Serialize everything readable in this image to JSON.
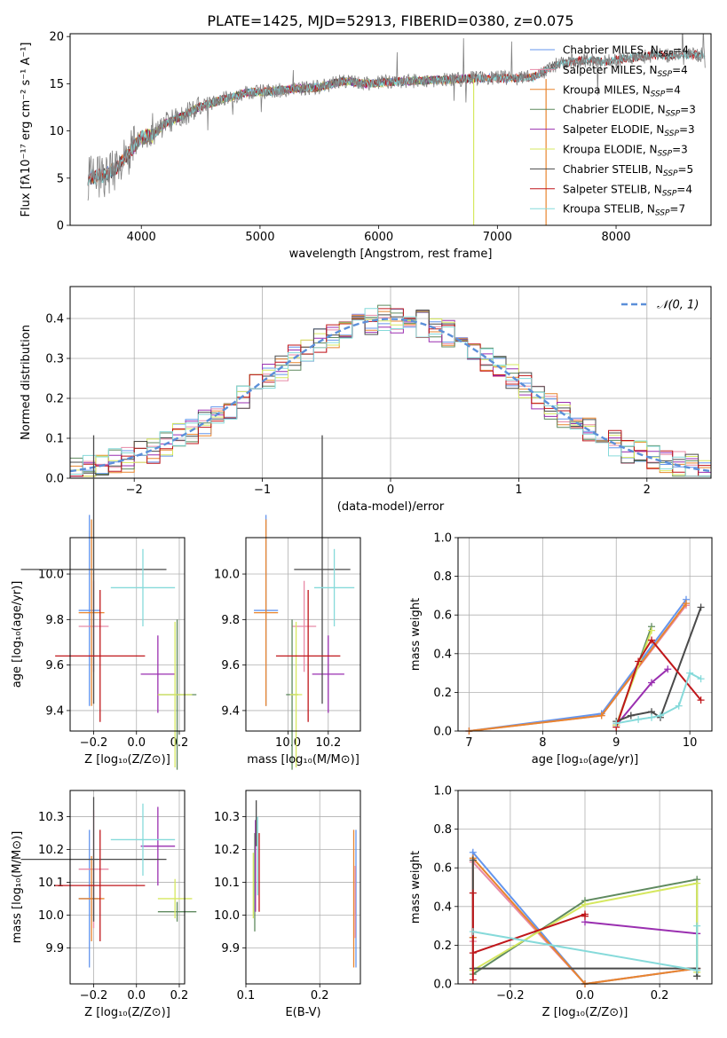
{
  "figure_title": "PLATE=1425, MJD=52913, FIBERID=0380, z=0.075",
  "colors": {
    "Chabrier MILES": "#6495ed",
    "Salpeter MILES": "#e88aa6",
    "Kroupa MILES": "#e8852f",
    "Chabrier ELODIE": "#5f8a5f",
    "Salpeter ELODIE": "#9a2fb0",
    "Kroupa ELODIE": "#d6e860",
    "Chabrier STELIB": "#4a4a4a",
    "Salpeter STELIB": "#c0171b",
    "Kroupa STELIB": "#86dada"
  },
  "chart_data": [
    {
      "id": "spectrum",
      "type": "line",
      "xlabel": "wavelength [Angstrom, rest frame]",
      "ylabel": "Flux [fλ10⁻¹⁷ erg cm⁻² s⁻¹ A⁻¹]",
      "xlim": [
        3400,
        8800
      ],
      "ylim": [
        0,
        20.3
      ],
      "xticks": [
        "4000",
        "5000",
        "6000",
        "7000",
        "8000"
      ],
      "yticks": [
        "0",
        "5",
        "10",
        "15",
        "20"
      ],
      "grid": false,
      "legend_position": "right",
      "legend": [
        {
          "name": "Chabrier MILES",
          "n": "4"
        },
        {
          "name": "Salpeter MILES",
          "n": "4"
        },
        {
          "name": "Kroupa MILES",
          "n": "4"
        },
        {
          "name": "Chabrier ELODIE",
          "n": "3"
        },
        {
          "name": "Salpeter ELODIE",
          "n": "3"
        },
        {
          "name": "Kroupa ELODIE",
          "n": "3"
        },
        {
          "name": "Chabrier STELIB",
          "n": "5"
        },
        {
          "name": "Salpeter STELIB",
          "n": "4"
        },
        {
          "name": "Kroupa STELIB",
          "n": "7"
        }
      ],
      "continuum": {
        "x": [
          3550,
          3700,
          3800,
          3900,
          4000,
          4100,
          4200,
          4300,
          4500,
          4700,
          4900,
          5100,
          5300,
          5500,
          5700,
          5900,
          6100,
          6300,
          6500,
          6700,
          6900,
          7100,
          7300,
          7500,
          7700,
          7900,
          8100,
          8300,
          8500,
          8750
        ],
        "y": [
          5.0,
          5.3,
          6.3,
          7.8,
          9.3,
          9.5,
          10.8,
          11.3,
          12.6,
          13.4,
          14.1,
          14.2,
          14.5,
          14.6,
          15.3,
          15.0,
          15.2,
          15.3,
          15.4,
          15.5,
          15.6,
          15.6,
          15.7,
          17.0,
          17.5,
          17.3,
          17.7,
          18.0,
          18.0,
          18.1
        ]
      },
      "model_ranges": {
        "Chabrier MILES": [
          3550,
          7410
        ],
        "Salpeter MILES": [
          3550,
          7410
        ],
        "Kroupa MILES": [
          3550,
          7410
        ],
        "Chabrier ELODIE": [
          3900,
          6800
        ],
        "Salpeter ELODIE": [
          3900,
          6800
        ],
        "Kroupa ELODIE": [
          3900,
          6800
        ],
        "Chabrier STELIB": [
          3550,
          8750
        ],
        "Salpeter STELIB": [
          3550,
          8750
        ],
        "Kroupa STELIB": [
          3550,
          8750
        ]
      }
    },
    {
      "id": "residuals",
      "type": "bar",
      "xlabel": "(data-model)/error",
      "ylabel": "Normed distribution",
      "xlim": [
        -2.5,
        2.5
      ],
      "ylim": [
        0,
        0.48
      ],
      "xticks": [
        "−2",
        "−1",
        "0",
        "1",
        "2"
      ],
      "yticks": [
        "0.0",
        "0.1",
        "0.2",
        "0.3",
        "0.4"
      ],
      "grid": true,
      "legend_position": "top-right",
      "bin_width": 0.1,
      "reference": {
        "label": "𝒩(0, 1)",
        "mean": 0,
        "sigma": 1,
        "style": "dashed"
      }
    },
    {
      "id": "age_vs_Z",
      "type": "scatter",
      "xlabel": "Z [log₁₀(Z/Z⊙)]",
      "ylabel": "age  [log₁₀(age/yr)]",
      "xlim": [
        -0.31,
        0.225
      ],
      "ylim": [
        9.31,
        10.16
      ],
      "xticks": [
        "−0.2",
        "0.0",
        "0.2"
      ],
      "yticks": [
        "9.4",
        "9.6",
        "9.8",
        "10.0"
      ],
      "grid": true,
      "points": [
        {
          "model": "Chabrier MILES",
          "x": -0.22,
          "xerr": 0.05,
          "y": 9.84,
          "yerr": 0.42
        },
        {
          "model": "Salpeter MILES",
          "x": -0.2,
          "xerr": 0.07,
          "y": 9.77,
          "yerr": 0.2
        },
        {
          "model": "Kroupa MILES",
          "x": -0.21,
          "xerr": 0.06,
          "y": 9.83,
          "yerr": 0.41
        },
        {
          "model": "Chabrier ELODIE",
          "x": 0.19,
          "xerr": 0.09,
          "y": 9.47,
          "yerr": 0.33
        },
        {
          "model": "Salpeter ELODIE",
          "x": 0.1,
          "xerr": 0.08,
          "y": 9.56,
          "yerr": 0.17
        },
        {
          "model": "Kroupa ELODIE",
          "x": 0.18,
          "xerr": 0.08,
          "y": 9.47,
          "yerr": 0.32
        },
        {
          "model": "Chabrier STELIB",
          "x": -0.2,
          "xerr": 0.34,
          "y": 10.02,
          "yerr": 0.59
        },
        {
          "model": "Salpeter STELIB",
          "x": -0.17,
          "xerr": 0.21,
          "y": 9.64,
          "yerr": 0.29
        },
        {
          "model": "Kroupa STELIB",
          "x": 0.03,
          "xerr": 0.15,
          "y": 9.94,
          "yerr": 0.17
        }
      ]
    },
    {
      "id": "age_vs_mass",
      "type": "scatter",
      "xlabel": "mass [log₁₀(M/M⊙)]",
      "ylabel": "",
      "xlim": [
        9.79,
        10.36
      ],
      "ylim": [
        9.31,
        10.16
      ],
      "xticks": [
        "10.0",
        "10.2"
      ],
      "yticks": [
        "9.4",
        "9.6",
        "9.8",
        "10.0"
      ],
      "grid": true,
      "points": [
        {
          "model": "Chabrier MILES",
          "x": 9.89,
          "xerr": 0.06,
          "y": 9.84,
          "yerr": 0.42
        },
        {
          "model": "Salpeter MILES",
          "x": 10.08,
          "xerr": 0.06,
          "y": 9.77,
          "yerr": 0.2
        },
        {
          "model": "Kroupa MILES",
          "x": 9.89,
          "xerr": 0.06,
          "y": 9.83,
          "yerr": 0.41
        },
        {
          "model": "Chabrier ELODIE",
          "x": 10.02,
          "xerr": 0.03,
          "y": 9.47,
          "yerr": 0.33
        },
        {
          "model": "Salpeter ELODIE",
          "x": 10.2,
          "xerr": 0.08,
          "y": 9.56,
          "yerr": 0.17
        },
        {
          "model": "Kroupa ELODIE",
          "x": 10.04,
          "xerr": 0.03,
          "y": 9.47,
          "yerr": 0.32
        },
        {
          "model": "Chabrier STELIB",
          "x": 10.17,
          "xerr": 0.14,
          "y": 10.02,
          "yerr": 0.59
        },
        {
          "model": "Salpeter STELIB",
          "x": 10.1,
          "xerr": 0.16,
          "y": 9.64,
          "yerr": 0.29
        },
        {
          "model": "Kroupa STELIB",
          "x": 10.23,
          "xerr": 0.1,
          "y": 9.94,
          "yerr": 0.17
        }
      ]
    },
    {
      "id": "massweight_vs_age",
      "type": "line",
      "xlabel": "age  [log₁₀(age/yr)]",
      "ylabel": "mass weight",
      "xlim": [
        6.85,
        10.3
      ],
      "ylim": [
        0,
        1.0
      ],
      "xticks": [
        "7",
        "8",
        "9",
        "10"
      ],
      "yticks": [
        "0.0",
        "0.2",
        "0.4",
        "0.6",
        "0.8",
        "1.0"
      ],
      "grid": true,
      "series": [
        {
          "model": "Chabrier MILES",
          "x": [
            7.0,
            8.8,
            9.95
          ],
          "y": [
            0.0,
            0.09,
            0.68
          ]
        },
        {
          "model": "Salpeter MILES",
          "x": [
            7.0,
            8.8,
            9.95
          ],
          "y": [
            0.0,
            0.08,
            0.65
          ]
        },
        {
          "model": "Kroupa MILES",
          "x": [
            7.0,
            8.8,
            9.95
          ],
          "y": [
            0.0,
            0.08,
            0.66
          ]
        },
        {
          "model": "Chabrier ELODIE",
          "x": [
            9.0,
            9.48
          ],
          "y": [
            0.03,
            0.54
          ]
        },
        {
          "model": "Salpeter ELODIE",
          "x": [
            9.0,
            9.48,
            9.7
          ],
          "y": [
            0.03,
            0.25,
            0.32
          ]
        },
        {
          "model": "Kroupa ELODIE",
          "x": [
            9.0,
            9.48
          ],
          "y": [
            0.03,
            0.52
          ]
        },
        {
          "model": "Chabrier STELIB",
          "x": [
            9.0,
            9.2,
            9.48,
            9.6,
            10.15
          ],
          "y": [
            0.05,
            0.08,
            0.1,
            0.07,
            0.64
          ]
        },
        {
          "model": "Salpeter STELIB",
          "x": [
            9.0,
            9.3,
            9.48,
            10.15
          ],
          "y": [
            0.02,
            0.36,
            0.47,
            0.16
          ]
        },
        {
          "model": "Kroupa STELIB",
          "x": [
            9.0,
            9.3,
            9.48,
            9.6,
            9.85,
            10.0,
            10.15
          ],
          "y": [
            0.04,
            0.06,
            0.07,
            0.08,
            0.13,
            0.3,
            0.27
          ]
        }
      ]
    },
    {
      "id": "mass_vs_Z",
      "type": "scatter",
      "xlabel": "Z [log₁₀(Z/Z⊙)]",
      "ylabel": "mass [log₁₀(M/M⊙)]",
      "xlim": [
        -0.31,
        0.225
      ],
      "ylim": [
        9.79,
        10.38
      ],
      "xticks": [
        "−0.2",
        "0.0",
        "0.2"
      ],
      "yticks": [
        "9.9",
        "10.0",
        "10.1",
        "10.2",
        "10.3"
      ],
      "grid": true,
      "points": [
        {
          "model": "Chabrier MILES",
          "x": -0.22,
          "xerr": 0.05,
          "y": 10.05,
          "yerr": 0.21
        },
        {
          "model": "Salpeter MILES",
          "x": -0.2,
          "xerr": 0.07,
          "y": 10.14,
          "yerr": 0.18
        },
        {
          "model": "Kroupa MILES",
          "x": -0.21,
          "xerr": 0.06,
          "y": 10.05,
          "yerr": 0.13
        },
        {
          "model": "Chabrier ELODIE",
          "x": 0.19,
          "xerr": 0.09,
          "y": 10.01,
          "yerr": 0.03
        },
        {
          "model": "Salpeter ELODIE",
          "x": 0.1,
          "xerr": 0.08,
          "y": 10.21,
          "yerr": 0.12
        },
        {
          "model": "Kroupa ELODIE",
          "x": 0.18,
          "xerr": 0.08,
          "y": 10.05,
          "yerr": 0.06
        },
        {
          "model": "Chabrier STELIB",
          "x": -0.2,
          "xerr": 0.34,
          "y": 10.17,
          "yerr": 0.19
        },
        {
          "model": "Salpeter STELIB",
          "x": -0.17,
          "xerr": 0.21,
          "y": 10.09,
          "yerr": 0.17
        },
        {
          "model": "Kroupa STELIB",
          "x": 0.03,
          "xerr": 0.15,
          "y": 10.23,
          "yerr": 0.11
        }
      ]
    },
    {
      "id": "mass_vs_ebv",
      "type": "scatter",
      "xlabel": "E(B-V)",
      "ylabel": "",
      "xlim": [
        0.1,
        0.255
      ],
      "ylim": [
        9.79,
        10.38
      ],
      "xticks": [
        "0.1",
        "0.2"
      ],
      "yticks": [
        "9.9",
        "10.0",
        "10.1",
        "10.2",
        "10.3"
      ],
      "grid": true,
      "points": [
        {
          "model": "Chabrier MILES",
          "x": 0.249,
          "xerr": 0.0,
          "y": 10.05,
          "yerr": 0.21
        },
        {
          "model": "Salpeter MILES",
          "x": 0.248,
          "xerr": 0.0,
          "y": 10.04,
          "yerr": 0.11
        },
        {
          "model": "Kroupa MILES",
          "x": 0.246,
          "xerr": 0.0,
          "y": 10.05,
          "yerr": 0.21
        },
        {
          "model": "Chabrier ELODIE",
          "x": 0.112,
          "xerr": 0.0,
          "y": 10.1,
          "yerr": 0.15
        },
        {
          "model": "Salpeter ELODIE",
          "x": 0.113,
          "xerr": 0.0,
          "y": 10.15,
          "yerr": 0.14
        },
        {
          "model": "Kroupa ELODIE",
          "x": 0.11,
          "xerr": 0.0,
          "y": 10.09,
          "yerr": 0.1
        },
        {
          "model": "Chabrier STELIB",
          "x": 0.114,
          "xerr": 0.0,
          "y": 10.28,
          "yerr": 0.07
        },
        {
          "model": "Salpeter STELIB",
          "x": 0.118,
          "xerr": 0.0,
          "y": 10.13,
          "yerr": 0.12
        },
        {
          "model": "Kroupa STELIB",
          "x": 0.116,
          "xerr": 0.0,
          "y": 10.18,
          "yerr": 0.12
        }
      ]
    },
    {
      "id": "massweight_vs_Z",
      "type": "line",
      "xlabel": "Z [log₁₀(Z/Z⊙)]",
      "ylabel": "mass weight",
      "xlim": [
        -0.34,
        0.34
      ],
      "ylim": [
        0,
        1.0
      ],
      "xticks": [
        "−0.2",
        "0.0",
        "0.2"
      ],
      "yticks": [
        "0.0",
        "0.2",
        "0.4",
        "0.6",
        "0.8",
        "1.0"
      ],
      "grid": true,
      "series": [
        {
          "model": "Chabrier MILES",
          "x": [
            0.3,
            0.0,
            -0.3,
            -0.3
          ],
          "y": [
            0.08,
            0.0,
            0.68,
            0.24
          ]
        },
        {
          "model": "Salpeter MILES",
          "x": [
            0.3,
            0.0,
            -0.3,
            -0.3
          ],
          "y": [
            0.08,
            0.0,
            0.63,
            0.22
          ]
        },
        {
          "model": "Kroupa MILES",
          "x": [
            0.3,
            0.0,
            -0.3,
            -0.3
          ],
          "y": [
            0.08,
            0.0,
            0.65,
            0.24
          ]
        },
        {
          "model": "Chabrier ELODIE",
          "x": [
            0.3,
            0.3,
            0.0,
            -0.3
          ],
          "y": [
            0.04,
            0.54,
            0.43,
            0.05
          ]
        },
        {
          "model": "Salpeter ELODIE",
          "x": [
            0.0,
            0.3
          ],
          "y": [
            0.32,
            0.26
          ]
        },
        {
          "model": "Kroupa ELODIE",
          "x": [
            0.3,
            0.3,
            0.0,
            -0.3
          ],
          "y": [
            0.06,
            0.52,
            0.41,
            0.07
          ]
        },
        {
          "model": "Chabrier STELIB",
          "x": [
            -0.3,
            -0.3,
            0.3,
            0.3
          ],
          "y": [
            0.64,
            0.08,
            0.08,
            0.04
          ]
        },
        {
          "model": "Salpeter STELIB",
          "x": [
            -0.3,
            -0.3,
            -0.3,
            0.0,
            0.0
          ],
          "y": [
            0.02,
            0.47,
            0.16,
            0.36,
            0.35
          ]
        },
        {
          "model": "Kroupa STELIB",
          "x": [
            -0.3,
            0.3,
            0.3
          ],
          "y": [
            0.27,
            0.07,
            0.3
          ]
        }
      ]
    }
  ]
}
